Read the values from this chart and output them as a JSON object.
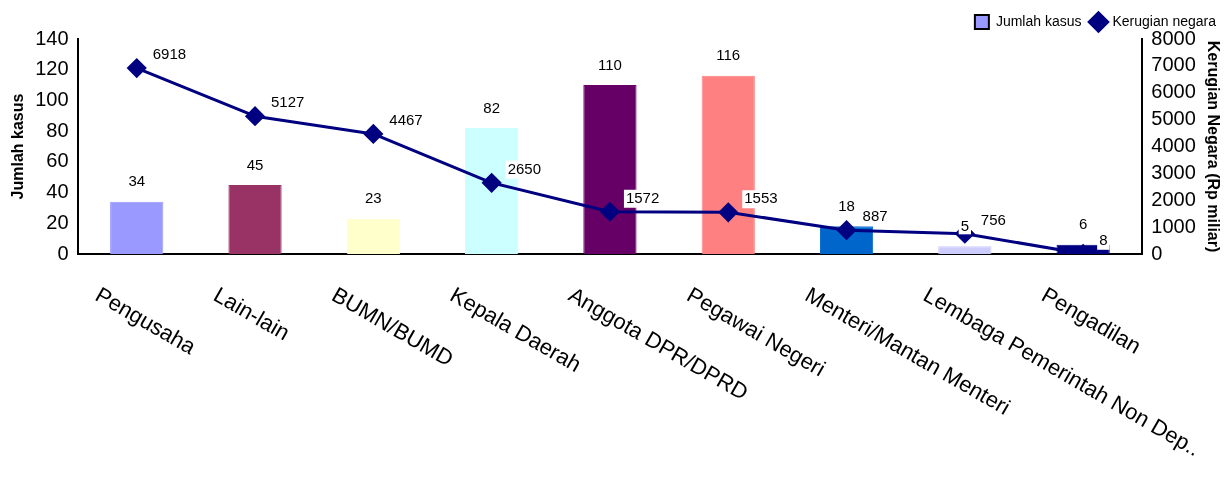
{
  "chart_data": {
    "type": "bar",
    "categories": [
      "Pengusaha",
      "Lain-lain",
      "BUMN/BUMD",
      "Kepala Daerah",
      "Anggota DPR/DPRD",
      "Pegawai Negeri",
      "Menteri/Mantan Menteri",
      "Lembaga Pemerintah Non Dep..",
      "Pengadilan"
    ],
    "series": [
      {
        "name": "Jumlah kasus",
        "colors": [
          "#9999ff",
          "#993366",
          "#ffffcc",
          "#ccffff",
          "#660066",
          "#ff8080",
          "#0066cc",
          "#ccccff",
          "#000080"
        ],
        "values": [
          34,
          45,
          23,
          82,
          110,
          116,
          18,
          5,
          6
        ]
      },
      {
        "name": "Kerugian negara",
        "type": "line",
        "axis": "y2",
        "color": "#000080",
        "marker": "diamond",
        "values": [
          6918,
          5127,
          4467,
          2650,
          1572,
          1553,
          887,
          756,
          8
        ]
      }
    ],
    "ylabel": "Jumlah kasus",
    "y2label": "Kerugian Negara (Rp miliar)",
    "ylim": [
      0,
      140
    ],
    "yticks": [
      0,
      20,
      40,
      60,
      80,
      100,
      120,
      140
    ],
    "y2lim": [
      0,
      8000
    ],
    "y2ticks": [
      0,
      1000,
      2000,
      3000,
      4000,
      5000,
      6000,
      7000,
      8000
    ],
    "data_labels": true,
    "legend": "top right",
    "grid": false
  }
}
